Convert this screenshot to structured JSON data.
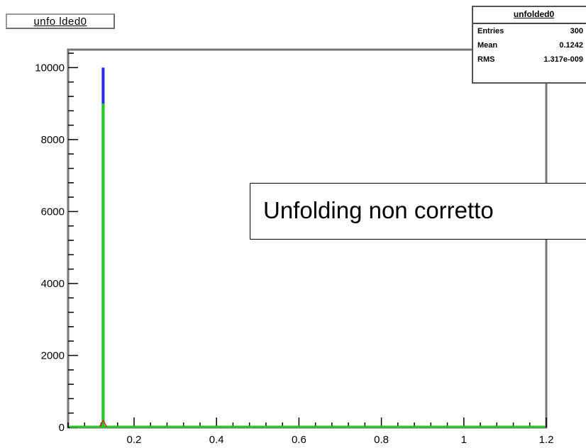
{
  "title_box": "unfo lded0",
  "stats": {
    "title": "unfolded0",
    "rows": [
      {
        "key": "Entries",
        "value": "300"
      },
      {
        "key": "Mean",
        "value": "0.1242"
      },
      {
        "key": "RMS",
        "value": "1.317e-009"
      }
    ]
  },
  "annotation": "Unfolding non corretto",
  "colors": {
    "blue": "#2a2af0",
    "green": "#22cc22",
    "red": "#dd2222",
    "axis": "#000000"
  },
  "chart_data": {
    "type": "bar",
    "title": "unfo lded0",
    "xlabel": "",
    "ylabel": "",
    "xlim": [
      0.04,
      1.2
    ],
    "ylim": [
      0,
      10500
    ],
    "x_ticks": [
      0.2,
      0.4,
      0.6,
      0.8,
      1,
      1.2
    ],
    "x_tick_labels": [
      "0.2",
      "0.4",
      "0.6",
      "0.8",
      "1",
      "1.2"
    ],
    "y_ticks": [
      0,
      2000,
      4000,
      6000,
      8000,
      10000
    ],
    "y_tick_labels": [
      "0",
      "2000",
      "4000",
      "6000",
      "8000",
      "10000"
    ],
    "series": [
      {
        "color": "blue",
        "x": [
          0.125
        ],
        "values": [
          10000
        ]
      },
      {
        "color": "green",
        "x": [
          0.125
        ],
        "values": [
          9000
        ]
      },
      {
        "color": "red",
        "x": [
          0.125
        ],
        "values": [
          0
        ]
      }
    ]
  }
}
